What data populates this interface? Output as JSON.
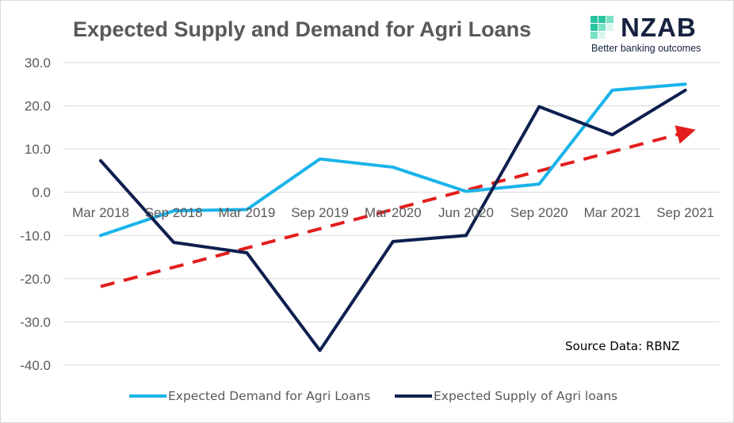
{
  "title": "Expected Supply and Demand for Agri Loans",
  "logo": {
    "name": "NZAB",
    "tagline": "Better banking outcomes",
    "colors": [
      "#29c4a0",
      "#7be0c4",
      "#d9f5ec"
    ]
  },
  "source_note": "Source Data: RBNZ",
  "colors": {
    "demand": "#19b4ea",
    "supply": "#0d1f4f",
    "trend": "#e31d1d",
    "grid": "#d9d9d9",
    "text": "#595959"
  },
  "chart_data": {
    "type": "line",
    "title": "Expected Supply and Demand for Agri Loans",
    "categories": [
      "Mar 2018",
      "Sep 2018",
      "Mar 2019",
      "Sep 2019",
      "Mar 2020",
      "Jun 2020",
      "Sep 2020",
      "Mar 2021",
      "Sep 2021"
    ],
    "series": [
      {
        "name": "Expected Demand for Agri Loans",
        "values": [
          -10.0,
          -4.3,
          -4.0,
          7.7,
          5.8,
          0.2,
          1.9,
          23.6,
          25.0
        ]
      },
      {
        "name": "Expected Supply of Agri loans",
        "values": [
          7.3,
          -11.6,
          -14.0,
          -36.6,
          -11.4,
          -10.0,
          19.8,
          13.3,
          23.6
        ]
      }
    ],
    "trend_arrow": {
      "start": -21.8,
      "end": 14.0,
      "style": "dashed",
      "direction": "upward"
    },
    "ylim": [
      -40,
      30
    ],
    "yticks": [
      "30.0",
      "20.0",
      "10.0",
      "0.0",
      "-10.0",
      "-20.0",
      "-30.0",
      "-40.0"
    ],
    "ytick_values": [
      30,
      20,
      10,
      0,
      -10,
      -20,
      -30,
      -40
    ],
    "grid": true,
    "legend_position": "bottom",
    "xlabel": "",
    "ylabel": ""
  }
}
